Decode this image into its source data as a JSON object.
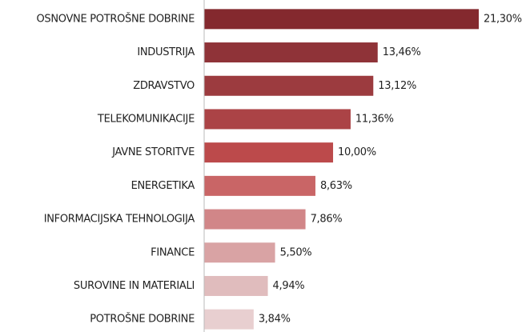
{
  "chart_data": {
    "type": "bar",
    "orientation": "horizontal",
    "categories": [
      "OSNOVNE POTROŠNE DOBRINE",
      "INDUSTRIJA",
      "ZDRAVSTVO",
      "TELEKOMUNIKACIJE",
      "JAVNE STORITVE",
      "ENERGETIKA",
      "INFORMACIJSKA TEHNOLOGIJA",
      "FINANCE",
      "SUROVINE IN MATERIALI",
      "POTROŠNE DOBRINE"
    ],
    "values": [
      21.3,
      13.46,
      13.12,
      11.36,
      10.0,
      8.63,
      7.86,
      5.5,
      4.94,
      3.84
    ],
    "value_labels": [
      "21,30%",
      "13,46%",
      "13,12%",
      "11,36%",
      "10,00%",
      "8,63%",
      "7,86%",
      "5,50%",
      "4,94%",
      "3,84%"
    ],
    "colors": [
      "#84292e",
      "#8f3338",
      "#9c3b3f",
      "#ab4346",
      "#bc4a4b",
      "#c96566",
      "#d18688",
      "#d9a3a4",
      "#e0bcbd",
      "#e8cfd0"
    ]
  }
}
